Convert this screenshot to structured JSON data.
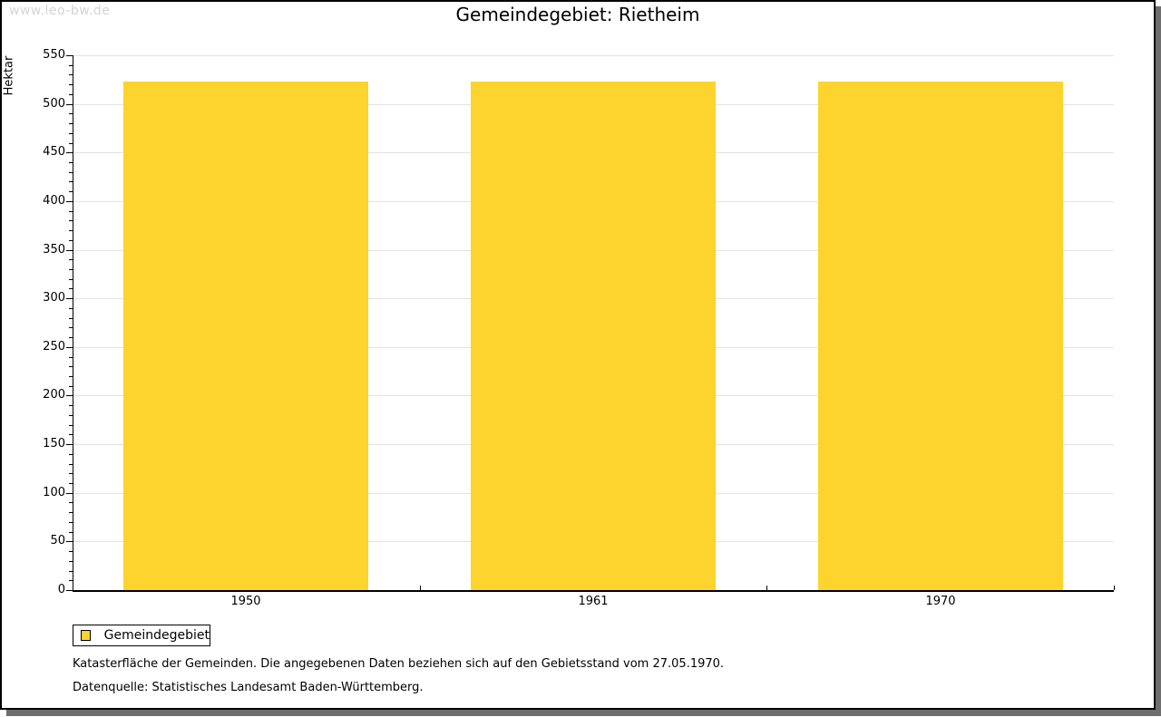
{
  "watermark": "www.leo-bw.de",
  "header": {
    "title": "Gemeindegebiet: Rietheim"
  },
  "legend": {
    "label": "Gemeindegebiet"
  },
  "footnotes": [
    "Katasterfläche der Gemeinden. Die angegebenen Daten beziehen sich auf den Gebietsstand vom 27.05.1970.",
    "Datenquelle: Statistisches Landesamt Baden-Württemberg."
  ],
  "colors": {
    "bar": "#fcd42d",
    "grid": "#e2e2e2",
    "axis": "#000000",
    "watermark": "#d4d4d4",
    "frame_shadow": "#6e6e6e",
    "background": "#ffffff"
  },
  "chart_data": {
    "type": "bar",
    "title": "Gemeindegebiet: Rietheim",
    "categories": [
      "1950",
      "1961",
      "1970"
    ],
    "series": [
      {
        "name": "Gemeindegebiet",
        "values": [
          523,
          523,
          523
        ],
        "color": "#fcd42d"
      }
    ],
    "xlabel": "",
    "ylabel": "Hektar",
    "unit": "Hektar",
    "ylim": [
      0,
      550
    ],
    "ytick_major_interval": 50,
    "ytick_minor_interval": 10,
    "grid": "horizontal-major",
    "legend_position": "bottom-left"
  }
}
